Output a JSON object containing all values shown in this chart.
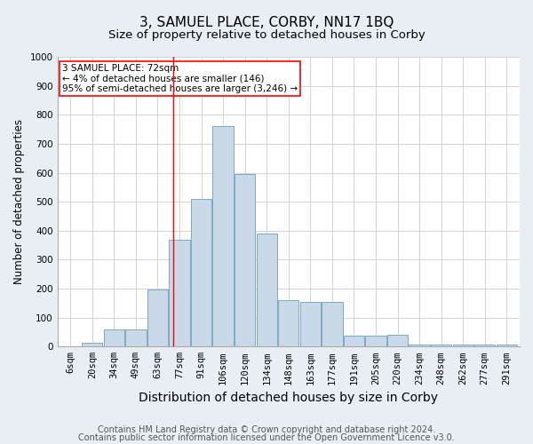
{
  "title": "3, SAMUEL PLACE, CORBY, NN17 1BQ",
  "subtitle": "Size of property relative to detached houses in Corby",
  "xlabel": "Distribution of detached houses by size in Corby",
  "ylabel": "Number of detached properties",
  "footnote1": "Contains HM Land Registry data © Crown copyright and database right 2024.",
  "footnote2": "Contains public sector information licensed under the Open Government Licence v3.0.",
  "bar_labels": [
    "6sqm",
    "20sqm",
    "34sqm",
    "49sqm",
    "63sqm",
    "77sqm",
    "91sqm",
    "106sqm",
    "120sqm",
    "134sqm",
    "148sqm",
    "163sqm",
    "177sqm",
    "191sqm",
    "205sqm",
    "220sqm",
    "234sqm",
    "248sqm",
    "262sqm",
    "277sqm",
    "291sqm"
  ],
  "bar_values": [
    0,
    12,
    60,
    60,
    197,
    370,
    510,
    760,
    595,
    390,
    160,
    155,
    155,
    38,
    38,
    42,
    8,
    8,
    8,
    8,
    8
  ],
  "bar_color": "#c9d9e8",
  "bar_edgecolor": "#7aaac8",
  "annotation_line1": "3 SAMUEL PLACE: 72sqm",
  "annotation_line2": "← 4% of detached houses are smaller (146)",
  "annotation_line3": "95% of semi-detached houses are larger (3,246) →",
  "annotation_box_color": "white",
  "annotation_box_edgecolor": "red",
  "vline_x": 4.72,
  "vline_color": "red",
  "ylim": [
    0,
    1000
  ],
  "yticks": [
    0,
    100,
    200,
    300,
    400,
    500,
    600,
    700,
    800,
    900,
    1000
  ],
  "bg_color": "#e8eef4",
  "plot_bg_color": "white",
  "title_fontsize": 11,
  "subtitle_fontsize": 9.5,
  "xlabel_fontsize": 10,
  "ylabel_fontsize": 8.5,
  "tick_fontsize": 7.5,
  "footnote_fontsize": 7
}
